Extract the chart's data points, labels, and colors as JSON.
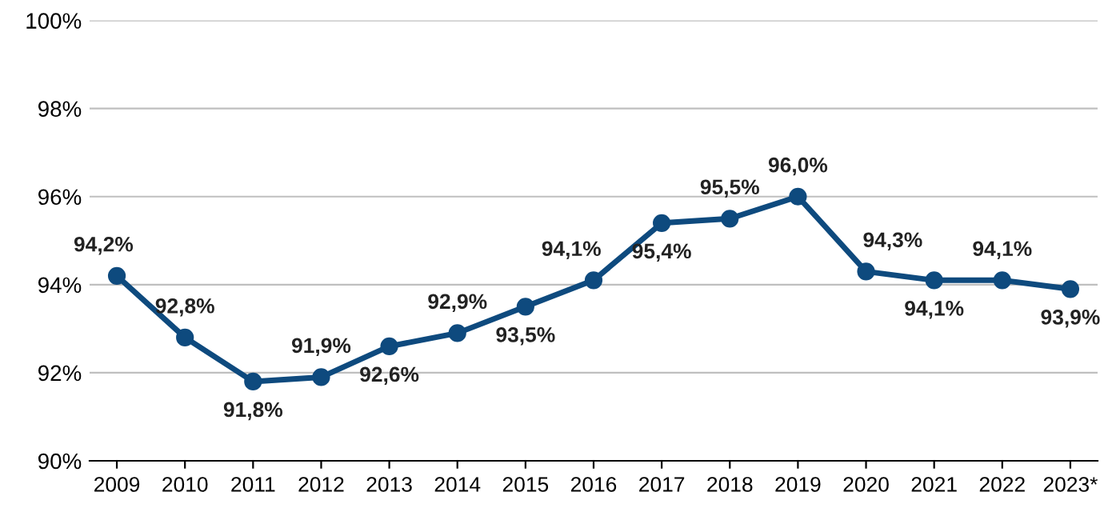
{
  "chart_data": {
    "type": "line",
    "categories": [
      "2009",
      "2010",
      "2011",
      "2012",
      "2013",
      "2014",
      "2015",
      "2016",
      "2017",
      "2018",
      "2019",
      "2020",
      "2021",
      "2022",
      "2023*"
    ],
    "series": [
      {
        "color": "#0e4a7e",
        "values": [
          94.2,
          92.8,
          91.8,
          91.9,
          92.6,
          92.9,
          93.5,
          94.1,
          95.4,
          95.5,
          96.0,
          94.3,
          94.1,
          94.1,
          93.9
        ],
        "value_labels": [
          "94,2%",
          "92,8%",
          "91,8%",
          "91,9%",
          "92,6%",
          "92,9%",
          "93,5%",
          "94,1%",
          "95,4%",
          "95,5%",
          "96,0%",
          "94,3%",
          "94,1%",
          "94,1%",
          "93,9%"
        ]
      }
    ],
    "ylim": [
      90,
      100
    ],
    "yticks": [
      {
        "value": 90,
        "label": "90%"
      },
      {
        "value": 92,
        "label": "92%"
      },
      {
        "value": 94,
        "label": "94%"
      },
      {
        "value": 96,
        "label": "96%"
      },
      {
        "value": 98,
        "label": "98%"
      },
      {
        "value": 100,
        "label": "100%"
      }
    ],
    "grid": "y",
    "marker": "circle",
    "line_style": "solid",
    "legend": false
  }
}
